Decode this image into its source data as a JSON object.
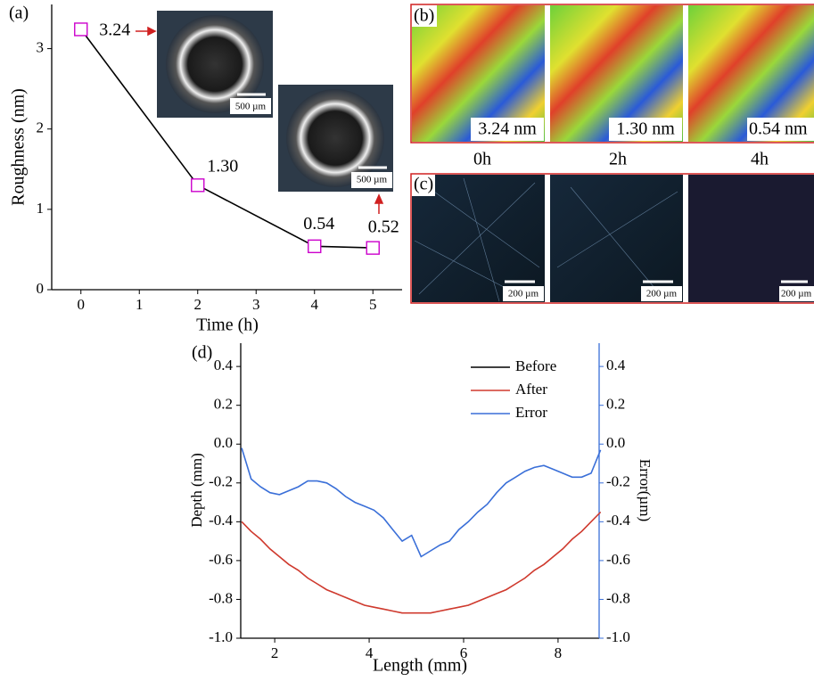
{
  "chart_data": [
    {
      "type": "line",
      "panel": "(a)",
      "x_label": "Time (h)",
      "y_label": "Roughness (nm)",
      "x": [
        0,
        2,
        4,
        5
      ],
      "series": [
        {
          "color": "#000000",
          "marker_color": "#cc00cc",
          "values": [
            3.24,
            1.3,
            0.54,
            0.52
          ],
          "value_labels": [
            "3.24",
            "1.30",
            "0.54",
            "0.52"
          ]
        }
      ],
      "xlim": [
        -0.5,
        5.5
      ],
      "xticks": [
        0,
        1,
        2,
        3,
        4,
        5
      ],
      "ylim": [
        0,
        3.55
      ],
      "yticks": [
        0,
        1,
        2,
        3
      ]
    },
    {
      "type": "line",
      "panel": "(d)",
      "x_label": "Length (mm)",
      "y_label": "Depth (mm)",
      "y2_label": "Error(µm)",
      "x": [
        1.3,
        1.5,
        1.7,
        1.9,
        2.1,
        2.3,
        2.5,
        2.7,
        2.9,
        3.1,
        3.3,
        3.5,
        3.7,
        3.9,
        4.1,
        4.3,
        4.5,
        4.7,
        4.9,
        5.1,
        5.3,
        5.5,
        5.7,
        5.9,
        6.1,
        6.3,
        6.5,
        6.7,
        6.9,
        7.1,
        7.3,
        7.5,
        7.7,
        7.9,
        8.1,
        8.3,
        8.5,
        8.7,
        8.9
      ],
      "series": [
        {
          "name": "Before",
          "color": "#000000",
          "values": [
            -0.4,
            -0.45,
            -0.49,
            -0.54,
            -0.58,
            -0.62,
            -0.65,
            -0.69,
            -0.72,
            -0.75,
            -0.77,
            -0.79,
            -0.81,
            -0.83,
            -0.84,
            -0.85,
            -0.86,
            -0.87,
            -0.87,
            -0.87,
            -0.87,
            -0.86,
            -0.85,
            -0.84,
            -0.83,
            -0.81,
            -0.79,
            -0.77,
            -0.75,
            -0.72,
            -0.69,
            -0.65,
            -0.62,
            -0.58,
            -0.54,
            -0.49,
            -0.45,
            -0.4,
            -0.35
          ]
        },
        {
          "name": "After",
          "color": "#d03a2e",
          "values": [
            -0.4,
            -0.45,
            -0.49,
            -0.54,
            -0.58,
            -0.62,
            -0.65,
            -0.69,
            -0.72,
            -0.75,
            -0.77,
            -0.79,
            -0.81,
            -0.83,
            -0.84,
            -0.85,
            -0.86,
            -0.87,
            -0.87,
            -0.87,
            -0.87,
            -0.86,
            -0.85,
            -0.84,
            -0.83,
            -0.81,
            -0.79,
            -0.77,
            -0.75,
            -0.72,
            -0.69,
            -0.65,
            -0.62,
            -0.58,
            -0.54,
            -0.49,
            -0.45,
            -0.4,
            -0.35
          ]
        },
        {
          "name": "Error",
          "color": "#3a6fd8",
          "axis": "y2",
          "values": [
            -0.02,
            -0.18,
            -0.22,
            -0.25,
            -0.26,
            -0.24,
            -0.22,
            -0.19,
            -0.19,
            -0.2,
            -0.23,
            -0.27,
            -0.3,
            -0.32,
            -0.34,
            -0.38,
            -0.44,
            -0.5,
            -0.47,
            -0.58,
            -0.55,
            -0.52,
            -0.5,
            -0.44,
            -0.4,
            -0.35,
            -0.31,
            -0.25,
            -0.2,
            -0.17,
            -0.14,
            -0.12,
            -0.11,
            -0.13,
            -0.15,
            -0.17,
            -0.17,
            -0.15,
            -0.03
          ]
        }
      ],
      "xlim": [
        1.28,
        8.87
      ],
      "xticks": [
        2,
        4,
        6,
        8
      ],
      "ylim": [
        -1.0,
        0.52
      ],
      "yticks": [
        {
          "value": -1.0,
          "label": "-1.0"
        },
        -0.8,
        -0.6,
        -0.4,
        -0.2,
        {
          "value": 0,
          "label": "0.0"
        },
        0.2,
        0.4
      ],
      "y2lim": [
        -1.0,
        0.52
      ],
      "y2ticks": [
        {
          "value": -1.0,
          "label": "-1.0"
        },
        -0.8,
        -0.6,
        -0.4,
        -0.2,
        {
          "value": 0,
          "label": "0.0"
        },
        0.2,
        0.4
      ],
      "y2_color": "#3a6fd8",
      "legend": "top-right"
    }
  ],
  "panels": {
    "a_images": [
      "500 µm",
      "500 µm"
    ],
    "b": {
      "label": "(b)",
      "images": [
        "3.24 nm",
        "1.30 nm",
        "0.54 nm"
      ],
      "times": [
        "0h",
        "2h",
        "4h"
      ]
    },
    "c": {
      "label": "(c)",
      "images": [
        "200 µm",
        "200 µm",
        "200 µm"
      ]
    }
  }
}
